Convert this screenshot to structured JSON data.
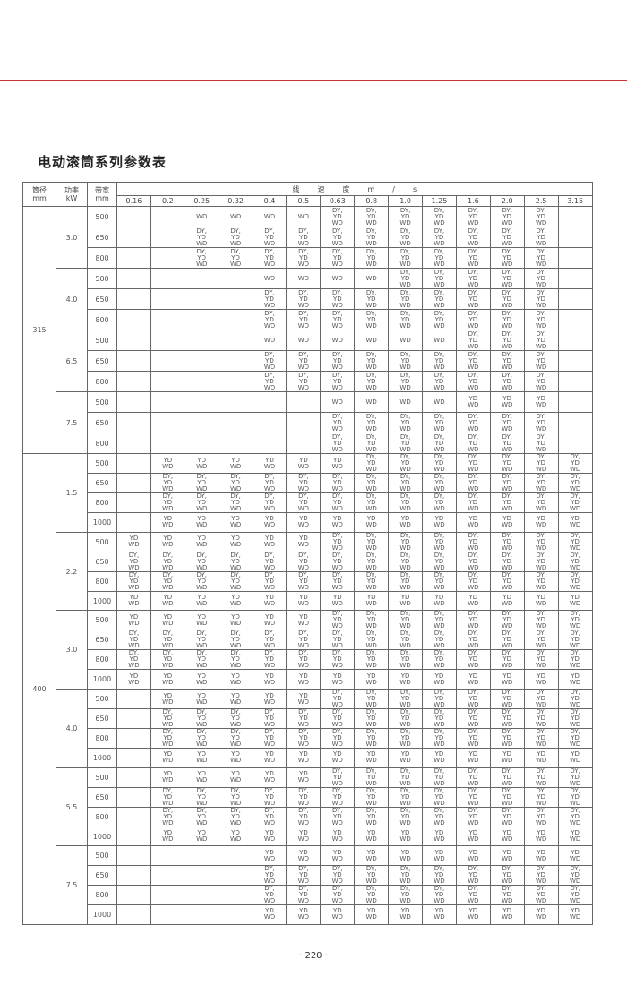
{
  "document": {
    "title": "电动滚筒系列参数表",
    "page_number": "· 220 ·",
    "accent_color": "#c8333a"
  },
  "header": {
    "diameter": [
      "筒径",
      "mm"
    ],
    "power": [
      "功率",
      "kW"
    ],
    "belt_width": [
      "带宽",
      "mm"
    ],
    "speed_title": [
      "线",
      "速",
      "度",
      "m",
      "/",
      "s"
    ],
    "speeds": [
      "0.16",
      "0.2",
      "0.25",
      "0.32",
      "0.4",
      "0.5",
      "0.63",
      "0.8",
      "1.0",
      "1.25",
      "1.6",
      "2.0",
      "2.5",
      "3.15"
    ]
  },
  "cell_values": {
    "W": [
      "WD"
    ],
    "Y": [
      "YD",
      "WD"
    ],
    "A": [
      "DY,",
      "YD",
      "WD"
    ],
    ".": []
  },
  "groups": [
    {
      "diameter": "315",
      "powers": [
        {
          "power": "3.0",
          "rows": [
            {
              "width": "500",
              "cells": "..WWWWAAAAAAA."
            },
            {
              "width": "650",
              "cells": "..AAAAAAAAAAA."
            },
            {
              "width": "800",
              "cells": "..AAAAAAAAAAA."
            }
          ]
        },
        {
          "power": "4.0",
          "rows": [
            {
              "width": "500",
              "cells": "....WWWWAAAAA."
            },
            {
              "width": "650",
              "cells": "....AAAAAAAAA."
            },
            {
              "width": "800",
              "cells": "....AAAAAAAAA."
            }
          ]
        },
        {
          "power": "6.5",
          "rows": [
            {
              "width": "500",
              "cells": "....WWWWWWAAA."
            },
            {
              "width": "650",
              "cells": "....AAAAAAAAA."
            },
            {
              "width": "800",
              "cells": "....AAAAAAAAA."
            }
          ]
        },
        {
          "power": "7.5",
          "rows": [
            {
              "width": "500",
              "cells": "......WWWWYYY."
            },
            {
              "width": "650",
              "cells": "......AAAAAAA."
            },
            {
              "width": "800",
              "cells": "......AAAAAAA."
            }
          ]
        }
      ]
    },
    {
      "diameter": "400",
      "powers": [
        {
          "power": "1.5",
          "rows": [
            {
              "width": "500",
              "cells": ".YYYYYYAAAAAAA"
            },
            {
              "width": "650",
              "cells": ".AAAAAAAAAAAAA"
            },
            {
              "width": "800",
              "cells": ".AAAAAAAAAAAAA"
            },
            {
              "width": "1000",
              "cells": ".YYYYYYYYYYYYY"
            }
          ]
        },
        {
          "power": "2.2",
          "rows": [
            {
              "width": "500",
              "cells": "YYYYYYAAAAAAAA"
            },
            {
              "width": "650",
              "cells": "AAAAAAAAAAAAAA"
            },
            {
              "width": "800",
              "cells": "AAAAAAAAAAAAAA"
            },
            {
              "width": "1000",
              "cells": "YYYYYYYYYYYYYY"
            }
          ]
        },
        {
          "power": "3.0",
          "rows": [
            {
              "width": "500",
              "cells": "YYYYYYAAAAAAAA"
            },
            {
              "width": "650",
              "cells": "AAAAAAAAAAAAAA"
            },
            {
              "width": "800",
              "cells": "AAAAAAAAAAAAAA"
            },
            {
              "width": "1000",
              "cells": "YYYYYYYYYYYYYY"
            }
          ]
        },
        {
          "power": "4.0",
          "rows": [
            {
              "width": "500",
              "cells": ".YYYYYAAAAAAAA"
            },
            {
              "width": "650",
              "cells": ".AAAAAAAAAAAAA"
            },
            {
              "width": "800",
              "cells": ".AAAAAAAAAAAAA"
            },
            {
              "width": "1000",
              "cells": ".YYYYYYYYYYYYY"
            }
          ]
        },
        {
          "power": "5.5",
          "rows": [
            {
              "width": "500",
              "cells": ".YYYYYAAAAAAAA"
            },
            {
              "width": "650",
              "cells": ".AAAAAAAAAAAAA"
            },
            {
              "width": "800",
              "cells": ".AAAAAAAAAAAAA"
            },
            {
              "width": "1000",
              "cells": ".YYYYYYYYYYYYY"
            }
          ]
        },
        {
          "power": "7.5",
          "rows": [
            {
              "width": "500",
              "cells": "....YYYYYYYYYY"
            },
            {
              "width": "650",
              "cells": "....AAAAAAAAAA"
            },
            {
              "width": "800",
              "cells": "....AAAAAAAAAA"
            },
            {
              "width": "1000",
              "cells": "....YYYYYYYYYY"
            }
          ]
        }
      ]
    }
  ]
}
